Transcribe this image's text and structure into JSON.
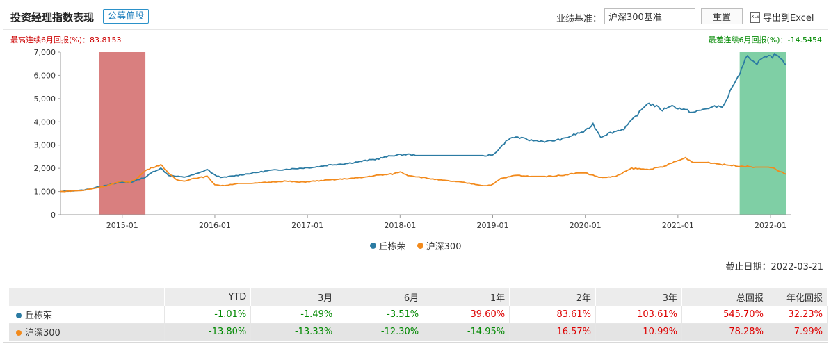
{
  "header": {
    "title": "投资经理指数表现",
    "badge": "公募偏股",
    "bench_label": "业绩基准：",
    "bench_value": "沪深300基准",
    "reset": "重置",
    "export": "导出到Excel",
    "xls": "XLS"
  },
  "best_text": "最高连续6月回报(%)：83.8153",
  "worst_text": "最差连续6月回报(%)：-14.5454",
  "as_of": "截止日期：2022-03-21",
  "legend": {
    "s1": "丘栋荣",
    "s2": "沪深300"
  },
  "colors": {
    "s1": "#2b7ba3",
    "s2": "#f28a1c",
    "best": "#d97f7f",
    "worst": "#7fcfa5"
  },
  "table": {
    "headers": [
      "",
      "YTD",
      "3月",
      "6月",
      "1年",
      "2年",
      "3年",
      "总回报",
      "年化回报"
    ],
    "rows": [
      {
        "name": "丘栋荣",
        "values": [
          "-1.01%",
          "-1.49%",
          "-3.51%",
          "39.60%",
          "83.61%",
          "103.61%",
          "545.70%",
          "32.23%"
        ]
      },
      {
        "name": "沪深300",
        "values": [
          "-13.80%",
          "-13.33%",
          "-12.30%",
          "-14.95%",
          "16.57%",
          "10.99%",
          "78.28%",
          "7.99%"
        ]
      }
    ]
  },
  "chart_data": {
    "type": "line",
    "ylim": [
      0,
      7000
    ],
    "yticks": [
      "0",
      "1,000",
      "2,000",
      "3,000",
      "4,000",
      "5,000",
      "6,000",
      "7,000"
    ],
    "xticks": [
      "2015-01",
      "2016-01",
      "2017-01",
      "2018-01",
      "2019-01",
      "2020-01",
      "2021-01",
      "2022-01"
    ],
    "best_period": [
      "2014-10",
      "2015-04"
    ],
    "worst_period": [
      "2021-09",
      "2022-03"
    ],
    "series": [
      {
        "name": "丘栋荣",
        "points": [
          [
            "2014-05",
            1000
          ],
          [
            "2014-08",
            1060
          ],
          [
            "2014-11",
            1280
          ],
          [
            "2015-01",
            1400
          ],
          [
            "2015-02",
            1380
          ],
          [
            "2015-03",
            1500
          ],
          [
            "2015-04",
            1620
          ],
          [
            "2015-05",
            1850
          ],
          [
            "2015-06",
            2000
          ],
          [
            "2015-07",
            1700
          ],
          [
            "2015-08",
            1650
          ],
          [
            "2015-09",
            1620
          ],
          [
            "2015-10",
            1700
          ],
          [
            "2015-11",
            1800
          ],
          [
            "2015-12",
            1950
          ],
          [
            "2016-01",
            1700
          ],
          [
            "2016-02",
            1600
          ],
          [
            "2016-04",
            1700
          ],
          [
            "2016-06",
            1800
          ],
          [
            "2016-08",
            1900
          ],
          [
            "2016-10",
            1950
          ],
          [
            "2016-12",
            2000
          ],
          [
            "2017-02",
            2050
          ],
          [
            "2017-04",
            2150
          ],
          [
            "2017-06",
            2200
          ],
          [
            "2017-08",
            2300
          ],
          [
            "2017-10",
            2400
          ],
          [
            "2017-12",
            2550
          ],
          [
            "2018-02",
            2600
          ],
          [
            "2018-03",
            2550
          ],
          [
            "2018-06",
            2550
          ],
          [
            "2018-09",
            2550
          ],
          [
            "2018-12",
            2550
          ],
          [
            "2019-01",
            2560
          ],
          [
            "2019-02",
            2900
          ],
          [
            "2019-03",
            3250
          ],
          [
            "2019-04",
            3350
          ],
          [
            "2019-06",
            3200
          ],
          [
            "2019-08",
            3150
          ],
          [
            "2019-10",
            3250
          ],
          [
            "2019-12",
            3500
          ],
          [
            "2020-01",
            3600
          ],
          [
            "2020-02",
            3900
          ],
          [
            "2020-03",
            3350
          ],
          [
            "2020-04",
            3500
          ],
          [
            "2020-06",
            3700
          ],
          [
            "2020-08",
            4400
          ],
          [
            "2020-09",
            4800
          ],
          [
            "2020-10",
            4700
          ],
          [
            "2020-11",
            4500
          ],
          [
            "2020-12",
            4700
          ],
          [
            "2021-01",
            4600
          ],
          [
            "2021-02",
            4500
          ],
          [
            "2021-03",
            4400
          ],
          [
            "2021-05",
            4600
          ],
          [
            "2021-07",
            4700
          ],
          [
            "2021-08",
            5500
          ],
          [
            "2021-09",
            6000
          ],
          [
            "2021-10",
            6900
          ],
          [
            "2021-11",
            6500
          ],
          [
            "2021-12",
            6700
          ],
          [
            "2022-01",
            6800
          ],
          [
            "2022-02",
            6900
          ],
          [
            "2022-03",
            6450
          ]
        ]
      },
      {
        "name": "沪深300",
        "points": [
          [
            "2014-05",
            1000
          ],
          [
            "2014-08",
            1050
          ],
          [
            "2014-11",
            1250
          ],
          [
            "2015-01",
            1450
          ],
          [
            "2015-02",
            1400
          ],
          [
            "2015-03",
            1600
          ],
          [
            "2015-04",
            1900
          ],
          [
            "2015-05",
            2050
          ],
          [
            "2015-06",
            2150
          ],
          [
            "2015-07",
            1800
          ],
          [
            "2015-08",
            1500
          ],
          [
            "2015-09",
            1450
          ],
          [
            "2015-10",
            1550
          ],
          [
            "2015-11",
            1600
          ],
          [
            "2015-12",
            1650
          ],
          [
            "2016-01",
            1300
          ],
          [
            "2016-02",
            1250
          ],
          [
            "2016-04",
            1350
          ],
          [
            "2016-06",
            1350
          ],
          [
            "2016-08",
            1400
          ],
          [
            "2016-10",
            1450
          ],
          [
            "2016-12",
            1400
          ],
          [
            "2017-02",
            1450
          ],
          [
            "2017-04",
            1500
          ],
          [
            "2017-06",
            1550
          ],
          [
            "2017-08",
            1600
          ],
          [
            "2017-10",
            1700
          ],
          [
            "2017-12",
            1750
          ],
          [
            "2018-01",
            1850
          ],
          [
            "2018-02",
            1700
          ],
          [
            "2018-06",
            1500
          ],
          [
            "2018-09",
            1400
          ],
          [
            "2018-12",
            1250
          ],
          [
            "2019-01",
            1300
          ],
          [
            "2019-02",
            1550
          ],
          [
            "2019-04",
            1700
          ],
          [
            "2019-06",
            1650
          ],
          [
            "2019-08",
            1650
          ],
          [
            "2019-10",
            1700
          ],
          [
            "2019-12",
            1800
          ],
          [
            "2020-01",
            1800
          ],
          [
            "2020-03",
            1600
          ],
          [
            "2020-05",
            1650
          ],
          [
            "2020-07",
            2000
          ],
          [
            "2020-09",
            1950
          ],
          [
            "2020-11",
            2050
          ],
          [
            "2020-12",
            2200
          ],
          [
            "2021-02",
            2450
          ],
          [
            "2021-03",
            2250
          ],
          [
            "2021-05",
            2250
          ],
          [
            "2021-07",
            2150
          ],
          [
            "2021-09",
            2100
          ],
          [
            "2021-11",
            2050
          ],
          [
            "2022-01",
            2050
          ],
          [
            "2022-02",
            1900
          ],
          [
            "2022-03",
            1750
          ]
        ]
      }
    ]
  }
}
